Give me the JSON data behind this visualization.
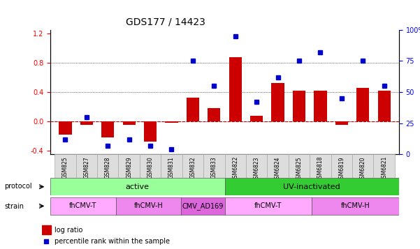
{
  "title": "GDS177 / 14423",
  "samples": [
    "GSM825",
    "GSM827",
    "GSM828",
    "GSM829",
    "GSM830",
    "GSM831",
    "GSM832",
    "GSM833",
    "GSM6822",
    "GSM6823",
    "GSM6824",
    "GSM6825",
    "GSM6818",
    "GSM6819",
    "GSM6820",
    "GSM6821"
  ],
  "log_ratio": [
    -0.18,
    -0.05,
    -0.22,
    -0.05,
    -0.28,
    -0.02,
    0.32,
    0.18,
    0.88,
    0.08,
    0.52,
    0.42,
    0.42,
    -0.05,
    0.46,
    0.42
  ],
  "percentile": [
    0.12,
    0.3,
    0.07,
    0.12,
    0.07,
    0.04,
    0.75,
    0.55,
    0.95,
    0.42,
    0.62,
    0.75,
    0.82,
    0.45,
    0.75,
    0.55
  ],
  "bar_color": "#cc0000",
  "dot_color": "#0000cc",
  "protocol_groups": [
    {
      "label": "active",
      "start": 0,
      "end": 8,
      "color": "#99ff99"
    },
    {
      "label": "UV-inactivated",
      "start": 8,
      "end": 16,
      "color": "#33cc33"
    }
  ],
  "strain_groups": [
    {
      "label": "fhCMV-T",
      "start": 0,
      "end": 3,
      "color": "#ffaaff"
    },
    {
      "label": "fhCMV-H",
      "start": 3,
      "end": 6,
      "color": "#ee88ee"
    },
    {
      "label": "CMV_AD169",
      "start": 6,
      "end": 8,
      "color": "#dd66dd"
    },
    {
      "label": "fhCMV-T",
      "start": 8,
      "end": 12,
      "color": "#ffaaff"
    },
    {
      "label": "fhCMV-H",
      "start": 12,
      "end": 16,
      "color": "#ee88ee"
    }
  ],
  "ylim_left": [
    -0.45,
    1.25
  ],
  "ylim_right": [
    0,
    100
  ],
  "yticks_left": [
    -0.4,
    0.0,
    0.4,
    0.8,
    1.2
  ],
  "yticks_right": [
    0,
    25,
    50,
    75,
    100
  ],
  "hlines": [
    0.0,
    0.4,
    0.8
  ],
  "legend_log": "log ratio",
  "legend_pct": "percentile rank within the sample"
}
